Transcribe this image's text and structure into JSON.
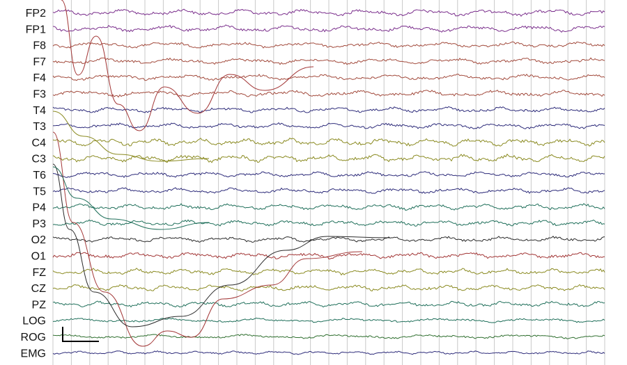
{
  "chart_data": {
    "type": "line",
    "title": "",
    "xlabel": "",
    "ylabel": "",
    "grid": true,
    "vertical_gridlines": 30,
    "channels": [
      {
        "name": "FP2",
        "color": "#7a2e8c",
        "amp": 1.6,
        "freq": 9
      },
      {
        "name": "FP1",
        "color": "#7a2e8c",
        "amp": 1.6,
        "freq": 9
      },
      {
        "name": "F8",
        "color": "#a24a3c",
        "amp": 1.4,
        "freq": 8
      },
      {
        "name": "F7",
        "color": "#a24a3c",
        "amp": 1.4,
        "freq": 8
      },
      {
        "name": "F4",
        "color": "#a24a3c",
        "amp": 1.4,
        "freq": 8
      },
      {
        "name": "F3",
        "color": "#a24a3c",
        "amp": 1.5,
        "freq": 8
      },
      {
        "name": "T4",
        "color": "#2d2b7a",
        "amp": 1.3,
        "freq": 10
      },
      {
        "name": "T3",
        "color": "#2d2b7a",
        "amp": 1.3,
        "freq": 10
      },
      {
        "name": "C4",
        "color": "#8a8a20",
        "amp": 1.8,
        "freq": 12
      },
      {
        "name": "C3",
        "color": "#8a8a20",
        "amp": 1.8,
        "freq": 12
      },
      {
        "name": "T6",
        "color": "#2d2b7a",
        "amp": 1.3,
        "freq": 10
      },
      {
        "name": "T5",
        "color": "#2d2b7a",
        "amp": 1.3,
        "freq": 10
      },
      {
        "name": "P4",
        "color": "#1f6f5a",
        "amp": 1.4,
        "freq": 11
      },
      {
        "name": "P3",
        "color": "#1f6f5a",
        "amp": 1.4,
        "freq": 11
      },
      {
        "name": "O2",
        "color": "#2b2b2b",
        "amp": 1.3,
        "freq": 10
      },
      {
        "name": "O1",
        "color": "#a23535",
        "amp": 1.5,
        "freq": 10
      },
      {
        "name": "FZ",
        "color": "#8a8a20",
        "amp": 1.5,
        "freq": 12
      },
      {
        "name": "CZ",
        "color": "#8a8a20",
        "amp": 1.5,
        "freq": 12
      },
      {
        "name": "PZ",
        "color": "#1f6f5a",
        "amp": 1.4,
        "freq": 11
      },
      {
        "name": "LOG",
        "color": "#1f6f5a",
        "amp": 1.0,
        "freq": 6
      },
      {
        "name": "ROG",
        "color": "#2f6f2f",
        "amp": 1.0,
        "freq": 6
      },
      {
        "name": "EMG",
        "color": "#2d2b7a",
        "amp": 0.8,
        "freq": 14
      }
    ],
    "scale_bar": {
      "shown": true
    }
  }
}
